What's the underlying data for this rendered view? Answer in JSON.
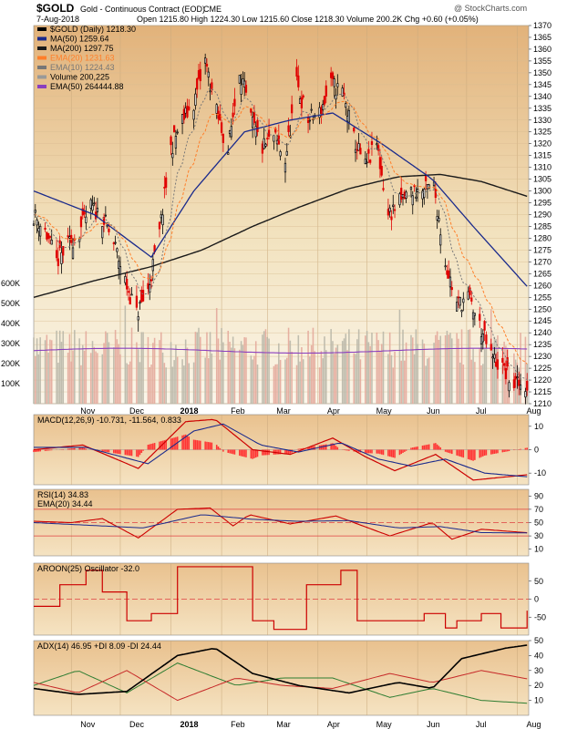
{
  "header": {
    "symbol": "$GOLD",
    "desc": "Gold - Continuous Contract (EOD)",
    "exchange": "CME",
    "copyright": "@ StockCharts.com",
    "date": "7-Aug-2018",
    "ohlc": "Open 1215.80  High 1224.30  Low 1215.60  Close 1218.30  Volume 200.2K  Chg +0.60 (+0.05%)"
  },
  "colors": {
    "price_up": "#000000",
    "price_down": "#e00000",
    "ma50": "#1a2a8c",
    "ma200": "#1a1a1a",
    "ema20": "#ff7f2a",
    "ema10": "#777777",
    "ema50_vol": "#8a3fbf",
    "macd": "#cc0000",
    "signal": "#1a2a8c",
    "hist": "#ff3333",
    "rsi": "#cc0000",
    "adx": "#000000",
    "pdi": "#2e7d32",
    "mdi": "#c62828",
    "aroon": "#cc0000"
  },
  "chart_data": [
    {
      "type": "candlestick",
      "title": "$GOLD (Daily) 1218.30",
      "x_tick_labels": [
        "Nov",
        "Dec",
        "2018",
        "Feb",
        "Mar",
        "Apr",
        "May",
        "Jun",
        "Jul",
        "Aug"
      ],
      "x_tick_dates": [
        "2017-11-01",
        "2017-12-01",
        "2018-01-01",
        "2018-02-01",
        "2018-03-01",
        "2018-04-01",
        "2018-05-01",
        "2018-06-01",
        "2018-07-01",
        "2018-08-01"
      ],
      "ylim": [
        1210,
        1370
      ],
      "yticks": [
        1210,
        1215,
        1220,
        1225,
        1230,
        1235,
        1240,
        1245,
        1250,
        1255,
        1260,
        1265,
        1270,
        1275,
        1280,
        1285,
        1290,
        1295,
        1300,
        1305,
        1310,
        1315,
        1320,
        1325,
        1330,
        1335,
        1340,
        1345,
        1350,
        1355,
        1360,
        1365,
        1370
      ],
      "legend": [
        {
          "label": "$GOLD (Daily) 1218.30"
        },
        {
          "label": "MA(50) 1259.64"
        },
        {
          "label": "MA(200) 1297.75"
        },
        {
          "label": "EMA(20) 1231.63"
        },
        {
          "label": "EMA(10) 1224.43"
        },
        {
          "label": "Volume 200,225"
        },
        {
          "label": "EMA(50) 264444.88"
        }
      ],
      "close_path": [
        [
          "2017-10-09",
          1290
        ],
        [
          "2017-10-16",
          1283
        ],
        [
          "2017-10-23",
          1270
        ],
        [
          "2017-10-30",
          1277
        ],
        [
          "2017-11-06",
          1283
        ],
        [
          "2017-11-13",
          1293
        ],
        [
          "2017-11-20",
          1289
        ],
        [
          "2017-11-27",
          1278
        ],
        [
          "2017-12-04",
          1262
        ],
        [
          "2017-12-11",
          1248
        ],
        [
          "2017-12-18",
          1258
        ],
        [
          "2017-12-25",
          1282
        ],
        [
          "2018-01-01",
          1318
        ],
        [
          "2018-01-08",
          1330
        ],
        [
          "2018-01-15",
          1337
        ],
        [
          "2018-01-22",
          1355
        ],
        [
          "2018-01-29",
          1333
        ],
        [
          "2018-02-05",
          1317
        ],
        [
          "2018-02-12",
          1352
        ],
        [
          "2018-02-19",
          1330
        ],
        [
          "2018-02-26",
          1318
        ],
        [
          "2018-03-05",
          1323
        ],
        [
          "2018-03-12",
          1313
        ],
        [
          "2018-03-19",
          1345
        ],
        [
          "2018-03-26",
          1330
        ],
        [
          "2018-04-02",
          1333
        ],
        [
          "2018-04-09",
          1345
        ],
        [
          "2018-04-16",
          1342
        ],
        [
          "2018-04-23",
          1322
        ],
        [
          "2018-04-30",
          1310
        ],
        [
          "2018-05-07",
          1320
        ],
        [
          "2018-05-14",
          1290
        ],
        [
          "2018-05-21",
          1295
        ],
        [
          "2018-05-28",
          1300
        ],
        [
          "2018-06-04",
          1300
        ],
        [
          "2018-06-11",
          1302
        ],
        [
          "2018-06-18",
          1270
        ],
        [
          "2018-06-25",
          1252
        ],
        [
          "2018-07-02",
          1255
        ],
        [
          "2018-07-09",
          1243
        ],
        [
          "2018-07-16",
          1230
        ],
        [
          "2018-07-23",
          1225
        ],
        [
          "2018-07-30",
          1218
        ],
        [
          "2018-08-07",
          1218
        ]
      ],
      "ma50_path": [
        [
          "2017-10-09",
          1300
        ],
        [
          "2017-11-15",
          1290
        ],
        [
          "2017-12-20",
          1272
        ],
        [
          "2018-01-15",
          1300
        ],
        [
          "2018-02-15",
          1325
        ],
        [
          "2018-03-15",
          1330
        ],
        [
          "2018-04-10",
          1333
        ],
        [
          "2018-05-10",
          1320
        ],
        [
          "2018-06-10",
          1305
        ],
        [
          "2018-07-05",
          1285
        ],
        [
          "2018-08-07",
          1259.64
        ]
      ],
      "ma200_path": [
        [
          "2017-10-09",
          1255
        ],
        [
          "2017-11-15",
          1262
        ],
        [
          "2017-12-20",
          1268
        ],
        [
          "2018-01-20",
          1275
        ],
        [
          "2018-02-20",
          1285
        ],
        [
          "2018-03-20",
          1293
        ],
        [
          "2018-04-20",
          1301
        ],
        [
          "2018-05-20",
          1306
        ],
        [
          "2018-06-15",
          1307
        ],
        [
          "2018-07-10",
          1304
        ],
        [
          "2018-08-07",
          1297.75
        ]
      ]
    },
    {
      "type": "bar",
      "name": "Volume",
      "yticks_labels": [
        "100K",
        "200K",
        "300K",
        "400K",
        "500K",
        "600K"
      ],
      "yticks": [
        100000,
        200000,
        300000,
        400000,
        500000,
        600000
      ],
      "ema50": 264444.88,
      "last": 200225
    },
    {
      "type": "line",
      "title": "MACD(12,26,9) -10.731, -11.564, 0.833",
      "ylim": [
        -15,
        15
      ],
      "yticks": [
        10,
        0,
        -10
      ],
      "macd": [
        [
          "2017-10-09",
          0
        ],
        [
          "2017-11-08",
          2
        ],
        [
          "2017-12-12",
          -8
        ],
        [
          "2018-01-10",
          12
        ],
        [
          "2018-01-28",
          13
        ],
        [
          "2018-02-20",
          0
        ],
        [
          "2018-03-15",
          -2
        ],
        [
          "2018-04-10",
          5
        ],
        [
          "2018-04-30",
          -3
        ],
        [
          "2018-05-18",
          -9
        ],
        [
          "2018-06-12",
          -2
        ],
        [
          "2018-07-05",
          -13
        ],
        [
          "2018-08-07",
          -10.731
        ]
      ],
      "signal": [
        [
          "2017-10-09",
          1
        ],
        [
          "2017-11-10",
          1
        ],
        [
          "2017-12-18",
          -6
        ],
        [
          "2018-01-15",
          8
        ],
        [
          "2018-02-02",
          11
        ],
        [
          "2018-02-25",
          2
        ],
        [
          "2018-03-20",
          -1
        ],
        [
          "2018-04-15",
          3
        ],
        [
          "2018-05-08",
          -4
        ],
        [
          "2018-05-28",
          -7
        ],
        [
          "2018-06-18",
          -4
        ],
        [
          "2018-07-12",
          -10
        ],
        [
          "2018-08-07",
          -11.564
        ]
      ]
    },
    {
      "type": "line",
      "title": "RSI(14) 34.83",
      "ylim": [
        0,
        100
      ],
      "yticks": [
        90,
        70,
        50,
        30,
        10
      ],
      "rsi": [
        [
          "2017-10-09",
          52
        ],
        [
          "2017-11-01",
          50
        ],
        [
          "2017-11-20",
          56
        ],
        [
          "2017-12-12",
          27
        ],
        [
          "2018-01-05",
          70
        ],
        [
          "2018-01-25",
          72
        ],
        [
          "2018-02-08",
          45
        ],
        [
          "2018-02-18",
          62
        ],
        [
          "2018-03-15",
          48
        ],
        [
          "2018-04-12",
          60
        ],
        [
          "2018-05-15",
          30
        ],
        [
          "2018-06-10",
          50
        ],
        [
          "2018-06-22",
          25
        ],
        [
          "2018-07-10",
          40
        ],
        [
          "2018-08-07",
          34.83
        ]
      ],
      "ema20": [
        [
          "2017-10-09",
          50
        ],
        [
          "2017-12-15",
          42
        ],
        [
          "2018-01-20",
          62
        ],
        [
          "2018-02-20",
          55
        ],
        [
          "2018-03-20",
          52
        ],
        [
          "2018-04-20",
          53
        ],
        [
          "2018-05-20",
          42
        ],
        [
          "2018-06-15",
          44
        ],
        [
          "2018-07-10",
          35
        ],
        [
          "2018-08-07",
          34.44
        ]
      ],
      "refs": [
        70,
        50,
        30
      ],
      "legend": [
        {
          "label": "RSI(14) 34.83"
        },
        {
          "label": "EMA(20) 34.44"
        }
      ]
    },
    {
      "type": "line",
      "title": "AROON(25) Oscillator -32.0",
      "ylim": [
        -100,
        100
      ],
      "yticks": [
        50,
        0,
        -50
      ],
      "aroon": [
        [
          "2017-10-09",
          -20
        ],
        [
          "2017-10-25",
          40
        ],
        [
          "2017-11-10",
          80
        ],
        [
          "2017-11-20",
          20
        ],
        [
          "2017-12-05",
          -60
        ],
        [
          "2017-12-20",
          -40
        ],
        [
          "2018-01-05",
          90
        ],
        [
          "2018-02-01",
          90
        ],
        [
          "2018-02-20",
          -60
        ],
        [
          "2018-03-05",
          -84
        ],
        [
          "2018-03-25",
          40
        ],
        [
          "2018-04-15",
          80
        ],
        [
          "2018-04-25",
          -60
        ],
        [
          "2018-05-20",
          -60
        ],
        [
          "2018-06-05",
          -40
        ],
        [
          "2018-06-18",
          -80
        ],
        [
          "2018-06-25",
          -60
        ],
        [
          "2018-07-10",
          -40
        ],
        [
          "2018-07-22",
          -80
        ],
        [
          "2018-08-07",
          -32.0
        ]
      ]
    },
    {
      "type": "line",
      "title": "ADX(14) 46.95 +DI 8.09 -DI 24.44",
      "ylim": [
        0,
        50
      ],
      "yticks": [
        50,
        40,
        30,
        20,
        10
      ],
      "adx": [
        [
          "2017-10-09",
          18
        ],
        [
          "2017-11-05",
          14
        ],
        [
          "2017-12-05",
          16
        ],
        [
          "2018-01-05",
          40
        ],
        [
          "2018-01-28",
          45
        ],
        [
          "2018-02-20",
          28
        ],
        [
          "2018-03-20",
          20
        ],
        [
          "2018-04-20",
          15
        ],
        [
          "2018-05-20",
          22
        ],
        [
          "2018-06-10",
          18
        ],
        [
          "2018-06-28",
          38
        ],
        [
          "2018-07-25",
          45
        ],
        [
          "2018-08-07",
          46.95
        ]
      ],
      "plus_di": [
        [
          "2017-10-09",
          20
        ],
        [
          "2017-11-05",
          30
        ],
        [
          "2017-12-05",
          15
        ],
        [
          "2018-01-05",
          35
        ],
        [
          "2018-02-10",
          20
        ],
        [
          "2018-03-10",
          25
        ],
        [
          "2018-04-10",
          25
        ],
        [
          "2018-05-15",
          12
        ],
        [
          "2018-06-10",
          18
        ],
        [
          "2018-07-10",
          10
        ],
        [
          "2018-08-07",
          8.09
        ]
      ],
      "minus_di": [
        [
          "2017-10-09",
          22
        ],
        [
          "2017-11-05",
          15
        ],
        [
          "2017-12-05",
          30
        ],
        [
          "2018-01-05",
          10
        ],
        [
          "2018-02-10",
          25
        ],
        [
          "2018-03-10",
          20
        ],
        [
          "2018-04-10",
          18
        ],
        [
          "2018-05-15",
          28
        ],
        [
          "2018-06-10",
          22
        ],
        [
          "2018-07-10",
          30
        ],
        [
          "2018-08-07",
          24.44
        ]
      ]
    }
  ]
}
